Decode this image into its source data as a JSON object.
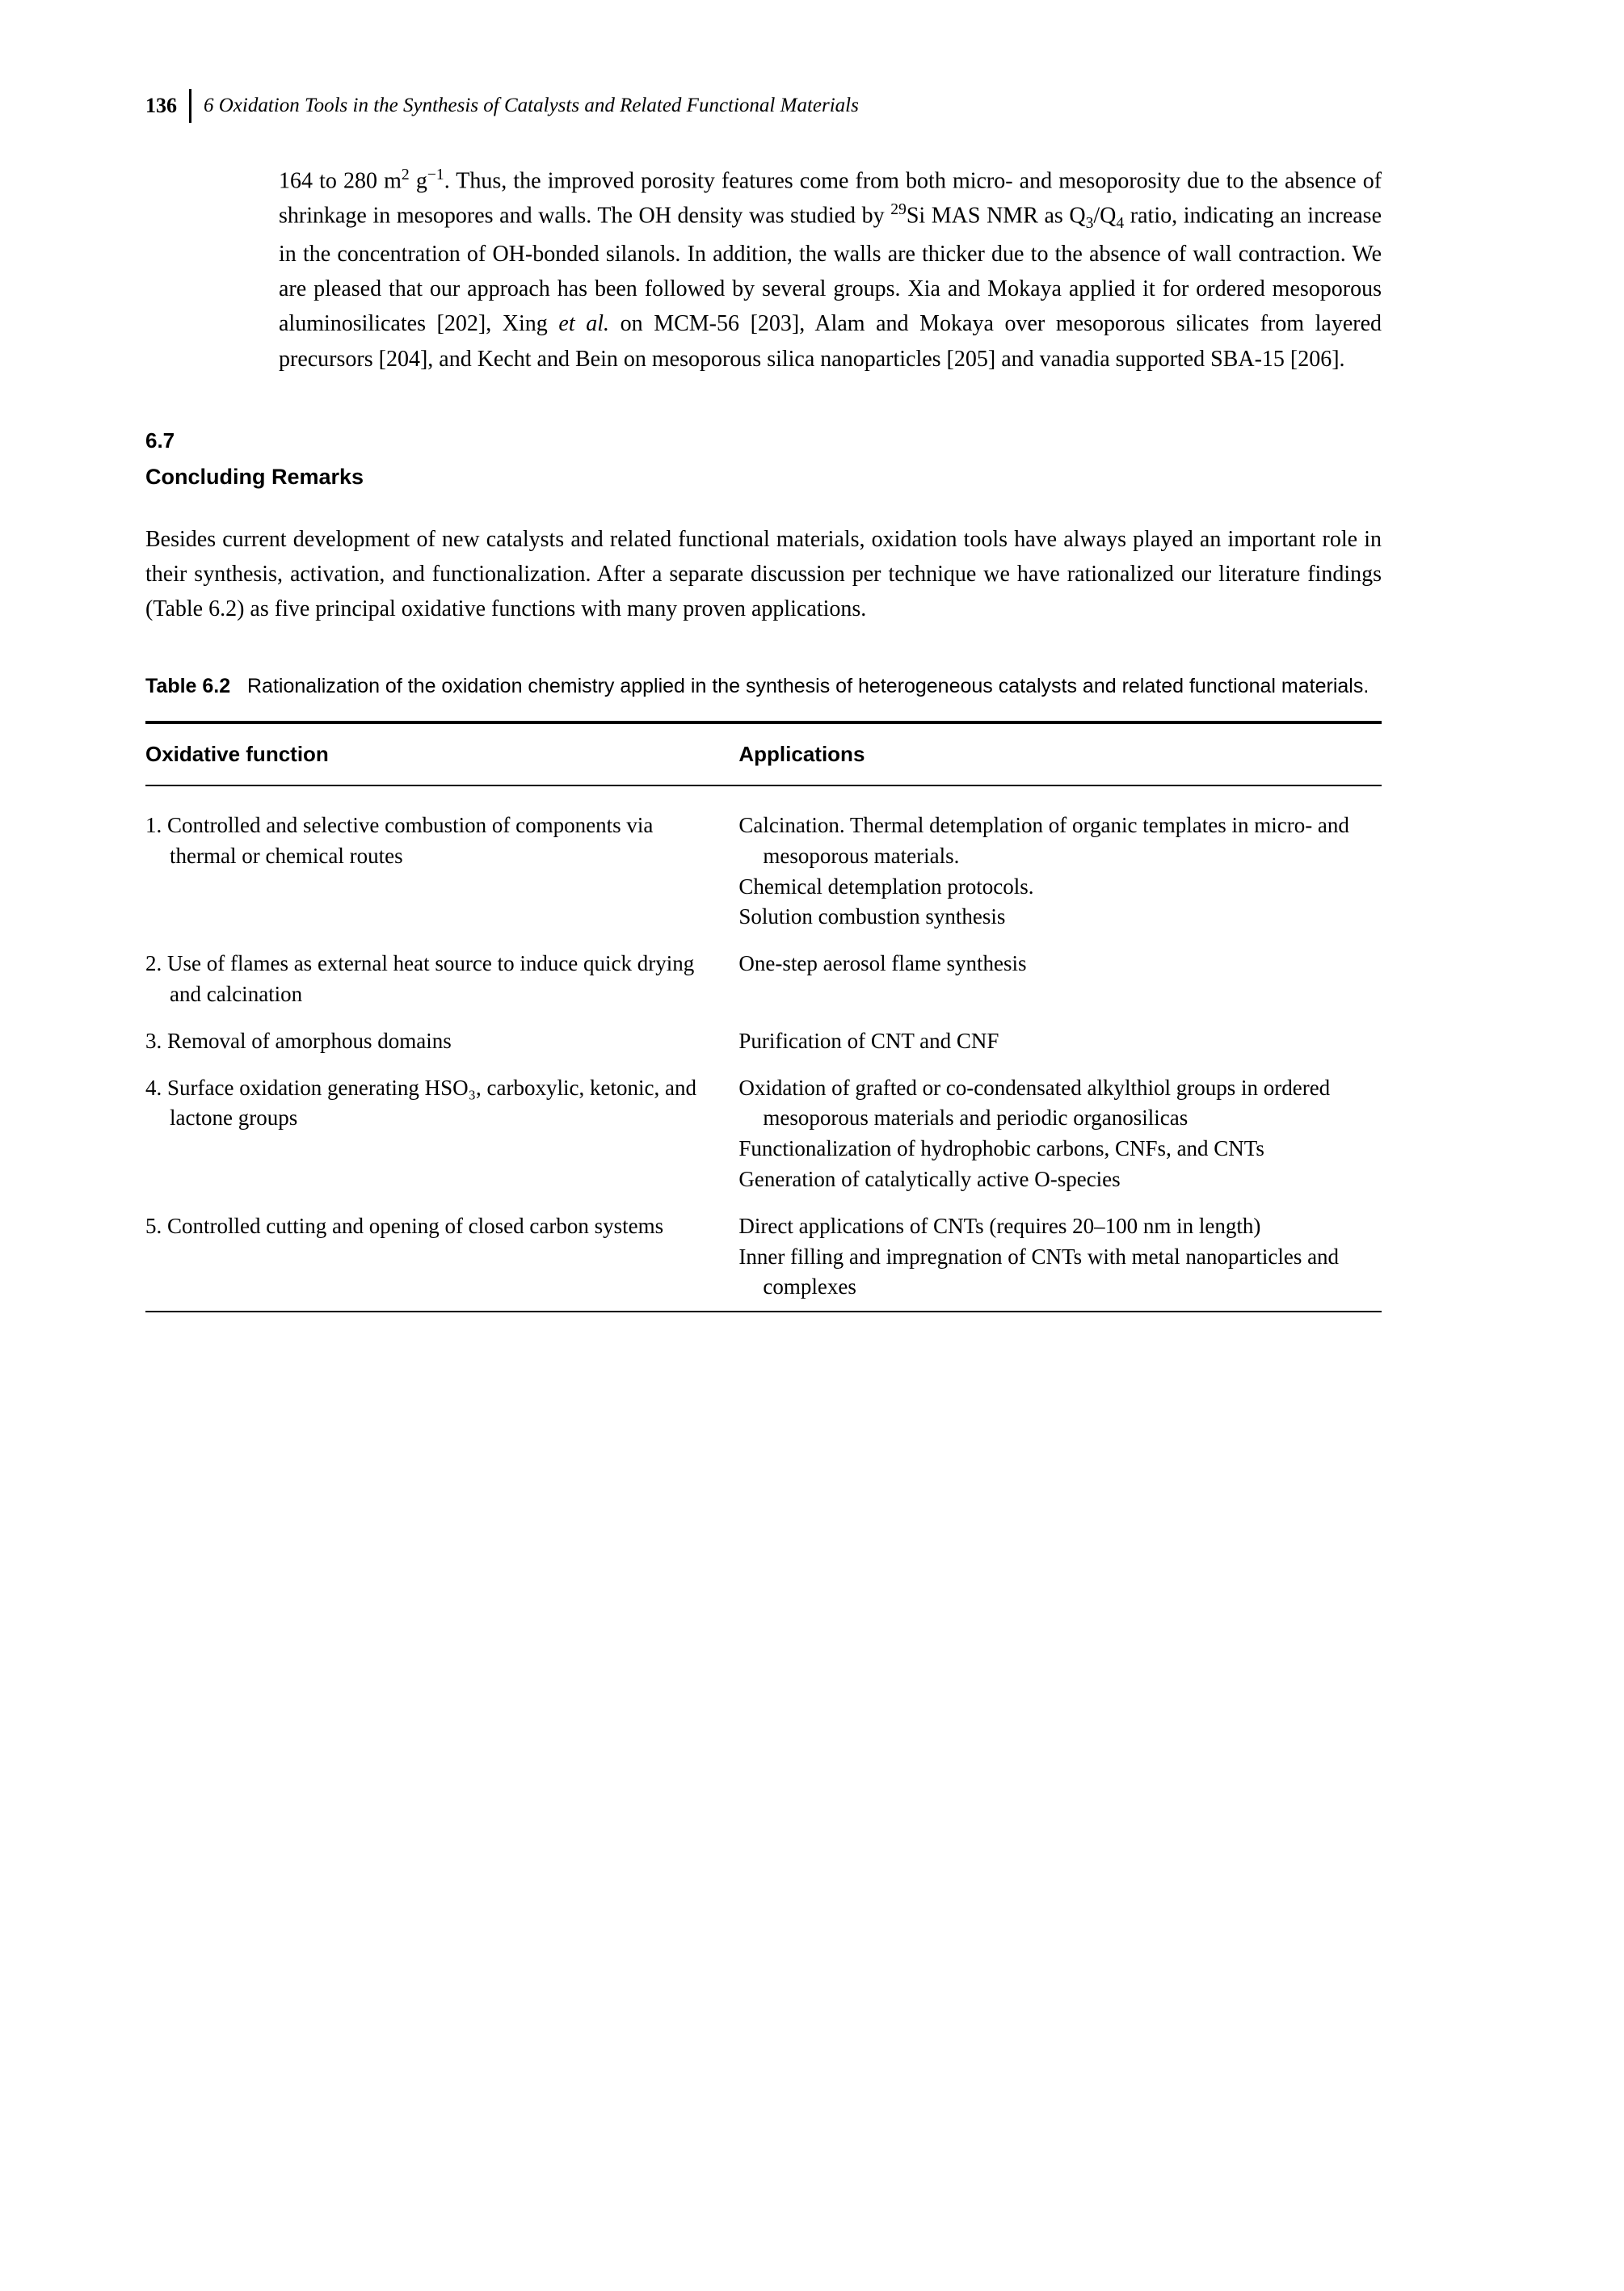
{
  "header": {
    "page_number": "136",
    "chapter_title_prefix": "6 Oxidation Tools in ",
    "chapter_title_italic": "the Synthesis of Catalysts and Related Functional Materials"
  },
  "body_paragraph": "164 to 280 m² g⁻¹. Thus, the improved porosity features come from both micro- and mesoporosity due to the absence of shrinkage in mesopores and walls. The OH density was studied by ²⁹Si MAS NMR as Q₃/Q₄ ratio, indicating an increase in the concentration of OH-bonded silanols. In addition, the walls are thicker due to the absence of wall contraction. We are pleased that our approach has been followed by several groups. Xia and Mokaya applied it for ordered mesoporous aluminosilicates [202], Xing et al. on MCM-56 [203], Alam and Mokaya over mesoporous silicates from layered precursors [204], and Kecht and Bein on mesoporous silica nanoparticles [205] and vanadia supported SBA-15 [206].",
  "section": {
    "number": "6.7",
    "title": "Concluding Remarks",
    "body": "Besides current development of new catalysts and related functional materials, oxidation tools have always played an important role in their synthesis, activation, and functionalization. After a separate discussion per technique we have rationalized our literature findings (Table 6.2) as five principal oxidative functions with many proven applications."
  },
  "table": {
    "label": "Table 6.2",
    "caption": "Rationalization of the oxidation chemistry applied in the synthesis of heterogeneous catalysts and related functional materials.",
    "columns": [
      "Oxidative function",
      "Applications"
    ],
    "rows": [
      {
        "func": "1. Controlled and selective combustion of components via thermal or chemical routes",
        "apps": [
          "Calcination. Thermal detemplation of organic templates in micro- and mesoporous materials.",
          "Chemical detemplation protocols.",
          "Solution combustion synthesis"
        ]
      },
      {
        "func": "2. Use of flames as external heat source to induce quick drying and calcination",
        "apps": [
          "One-step aerosol flame synthesis"
        ]
      },
      {
        "func": "3. Removal of amorphous domains",
        "apps": [
          "Purification of CNT and CNF"
        ]
      },
      {
        "func": "4. Surface oxidation generating HSO₃, carboxylic, ketonic, and lactone groups",
        "apps": [
          "Oxidation of grafted or co-condensated alkylthiol groups in ordered mesoporous materials and periodic organosilicas",
          "Functionalization of hydrophobic carbons, CNFs, and CNTs",
          "Generation of catalytically active O-species"
        ]
      },
      {
        "func": "5. Controlled cutting and opening of closed carbon systems",
        "apps": [
          "Direct applications of CNTs (requires 20–100 nm in length)",
          "Inner filling and impregnation of CNTs with metal nanoparticles and complexes"
        ]
      }
    ]
  }
}
